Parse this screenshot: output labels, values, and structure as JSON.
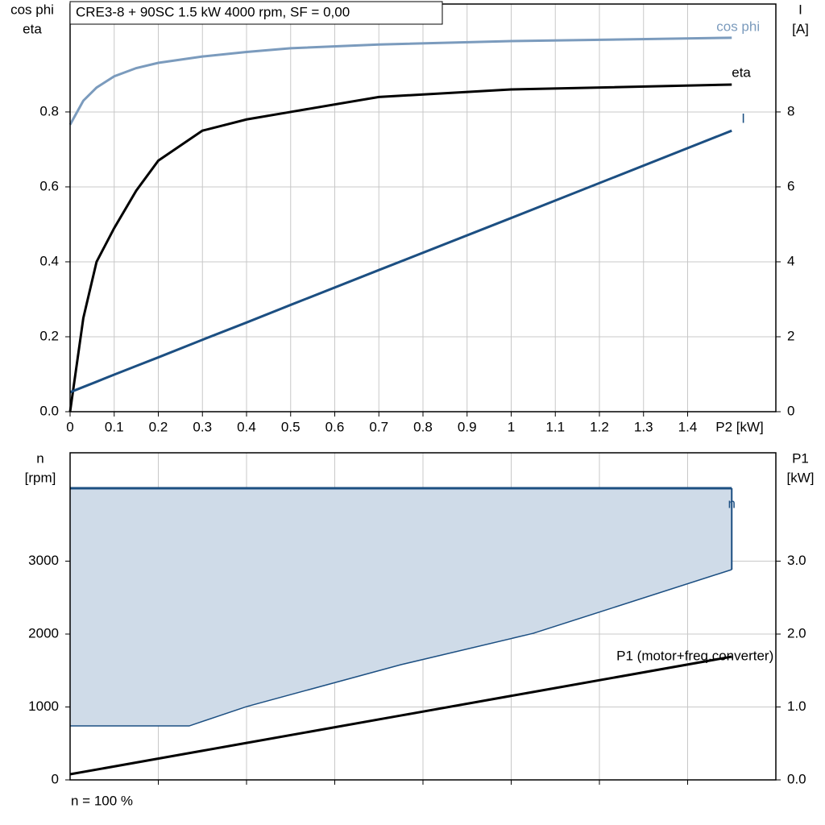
{
  "chart_data": [
    {
      "type": "line",
      "title": "CRE3-8 + 90SC   1.5 kW   4000 rpm, SF = 0,00",
      "ylabel": [
        "cos phi",
        "eta"
      ],
      "y2label": [
        "I",
        "[A]"
      ],
      "xlabel": "P2 [kW]",
      "x": [
        0,
        0.03,
        0.06,
        0.1,
        0.15,
        0.2,
        0.3,
        0.4,
        0.5,
        0.7,
        1.0,
        1.5
      ],
      "series": [
        {
          "name": "cos phi",
          "color": "#7b9bbd",
          "values": [
            0.766,
            0.83,
            0.865,
            0.895,
            0.917,
            0.931,
            0.948,
            0.96,
            0.97,
            0.98,
            0.989,
            0.998
          ]
        },
        {
          "name": "eta",
          "color": "#000000",
          "values": [
            0,
            0.25,
            0.4,
            0.49,
            0.59,
            0.67,
            0.75,
            0.78,
            0.8,
            0.84,
            0.86,
            0.873
          ]
        },
        {
          "name": "I",
          "color": "#1c4f82",
          "axis": "y2",
          "values": [
            0.52,
            0.66,
            0.8,
            0.99,
            1.22,
            1.45,
            1.92,
            2.38,
            2.85,
            3.78,
            5.17,
            7.5
          ]
        }
      ],
      "xlim": [
        0,
        1.6
      ],
      "xticks": [
        0,
        0.1,
        0.2,
        0.3,
        0.4,
        0.5,
        0.6,
        0.7,
        0.8,
        0.9,
        1.0,
        1.1,
        1.2,
        1.3,
        1.4
      ],
      "show_xtick_labels": true,
      "ylim": [
        0,
        1.088
      ],
      "yticks": [
        {
          "value": 0,
          "label": "0.0"
        },
        0.2,
        0.4,
        0.6,
        0.8
      ],
      "y2lim": [
        0,
        10.88
      ],
      "y2ticks": [
        0,
        2,
        4,
        6,
        8
      ],
      "grid": true
    },
    {
      "type": "line",
      "ylabel": [
        "n",
        "[rpm]"
      ],
      "y2label": [
        "P1",
        "[kW]"
      ],
      "annotation": "n = 100 %",
      "x": [
        0,
        0.27,
        0.4,
        0.75,
        1.05,
        1.5
      ],
      "series": [
        {
          "name": "n",
          "color": "#1c4f82",
          "fill": "#cfdbe8",
          "values": [
            4000,
            4000,
            4000,
            4000,
            4000,
            4000
          ],
          "lower": [
            740,
            740,
            1005,
            1580,
            2010,
            2884
          ]
        },
        {
          "name": "P1 (motor+freq.converter)",
          "color": "#000000",
          "axis": "y2",
          "values": [
            0.077,
            0.367,
            0.507,
            0.883,
            1.206,
            1.69
          ]
        }
      ],
      "xlim": [
        0,
        1.6
      ],
      "xticks": [
        0.2,
        0.4,
        0.6,
        0.8,
        1.0,
        1.2,
        1.4
      ],
      "show_xtick_labels": false,
      "ylim": [
        0,
        4486
      ],
      "yticks": [
        0,
        1000,
        2000,
        3000
      ],
      "y2lim": [
        0,
        4.486
      ],
      "y2ticks": [
        {
          "value": 0,
          "label": "0.0"
        },
        {
          "value": 1,
          "label": "1.0"
        },
        {
          "value": 2,
          "label": "2.0"
        },
        {
          "value": 3,
          "label": "3.0"
        }
      ],
      "grid": true
    }
  ]
}
